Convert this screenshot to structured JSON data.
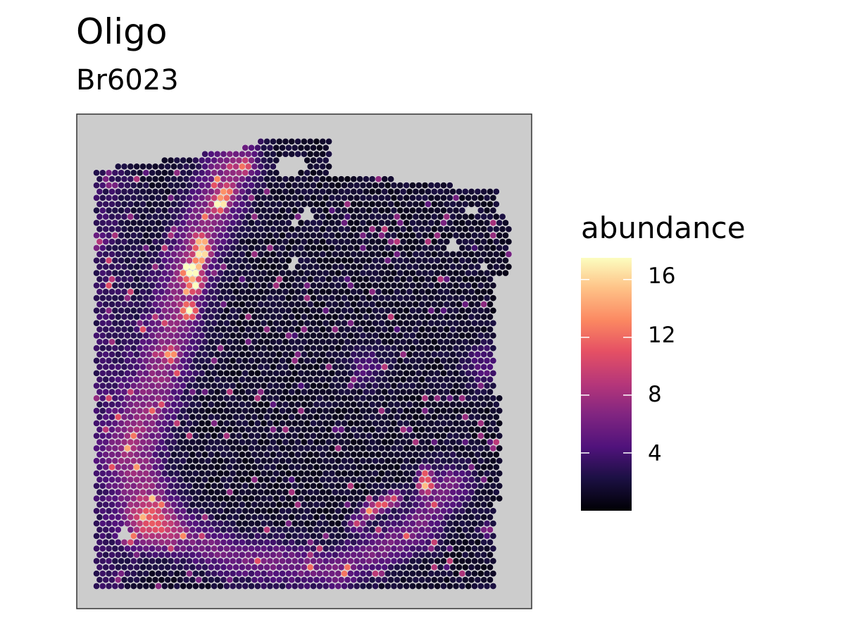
{
  "chart_data": {
    "type": "heatmap",
    "title": "Oligo",
    "subtitle": "Br6023",
    "legend": {
      "title": "abundance",
      "ticks": [
        "4",
        "8",
        "12",
        "16"
      ],
      "tick_values": [
        4,
        8,
        12,
        16
      ],
      "range": [
        0,
        17.5
      ],
      "colormap": "magma",
      "placement": "right"
    },
    "panel_background": "#cccccc",
    "spot_grid": {
      "columns": 67,
      "rows": 73,
      "layout": "hexagonal"
    },
    "hotspots": [
      {
        "col": 15,
        "row": 22,
        "value": 16
      },
      {
        "col": 15,
        "row": 28,
        "value": 17
      },
      {
        "col": 16,
        "row": 21,
        "value": 13
      },
      {
        "col": 16,
        "row": 24,
        "value": 14
      },
      {
        "col": 17,
        "row": 17,
        "value": 12
      },
      {
        "col": 17,
        "row": 19,
        "value": 15
      },
      {
        "col": 20,
        "row": 11,
        "value": 15
      },
      {
        "col": 21,
        "row": 9,
        "value": 11
      },
      {
        "col": 24,
        "row": 5,
        "value": 10
      },
      {
        "col": 12,
        "row": 35,
        "value": 11
      },
      {
        "col": 44,
        "row": 60,
        "value": 14
      },
      {
        "col": 46,
        "row": 59,
        "value": 13
      },
      {
        "col": 48,
        "row": 58,
        "value": 12
      },
      {
        "col": 53,
        "row": 56,
        "value": 15
      },
      {
        "col": 53,
        "row": 54,
        "value": 11
      },
      {
        "col": 42,
        "row": 62,
        "value": 11
      },
      {
        "col": 0,
        "row": 17,
        "value": 9
      },
      {
        "col": 63,
        "row": 63,
        "value": 9
      }
    ]
  }
}
